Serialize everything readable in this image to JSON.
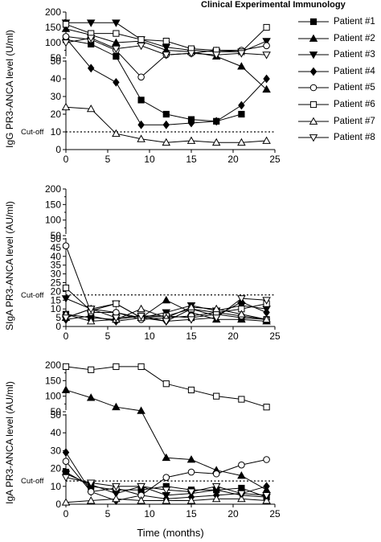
{
  "header": {
    "journal": "Clinical Experimental Immunology"
  },
  "legend": {
    "items": [
      {
        "label": "Patient #1",
        "marker": "square",
        "fill": "filled"
      },
      {
        "label": "Patient #2",
        "marker": "triangle-up",
        "fill": "filled"
      },
      {
        "label": "Patient #3",
        "marker": "triangle-down",
        "fill": "filled"
      },
      {
        "label": "Patient #4",
        "marker": "diamond",
        "fill": "filled"
      },
      {
        "label": "Patient #5",
        "marker": "circle",
        "fill": "open"
      },
      {
        "label": "Patient #6",
        "marker": "square",
        "fill": "open"
      },
      {
        "label": "Patient #7",
        "marker": "triangle-up",
        "fill": "open"
      },
      {
        "label": "Patient #8",
        "marker": "triangle-down",
        "fill": "open"
      }
    ]
  },
  "chart_data": [
    {
      "type": "line",
      "ylabel": "IgG PR3-ANCA level (U/ml)",
      "xlabel": "",
      "xlim": [
        0,
        25
      ],
      "xticks": [
        0,
        5,
        10,
        15,
        20,
        25
      ],
      "ylim": [
        0,
        200
      ],
      "y_axis_break": {
        "lower": [
          0,
          50
        ],
        "upper": [
          50,
          200
        ]
      },
      "yticks_lower": [
        0,
        10,
        20,
        30,
        40,
        50
      ],
      "yticks_upper": [
        100,
        150,
        200
      ],
      "cutoff": {
        "label": "Cut-off",
        "value": 10
      },
      "series": [
        {
          "name": "Patient #1",
          "x": [
            0,
            3,
            6,
            9,
            12,
            15,
            18,
            21
          ],
          "values": [
            110,
            95,
            55,
            28,
            20,
            17,
            16,
            20
          ]
        },
        {
          "name": "Patient #2",
          "x": [
            0,
            3,
            6,
            9,
            12,
            15,
            18,
            21,
            24
          ],
          "values": [
            145,
            125,
            100,
            105,
            75,
            70,
            55,
            47,
            34
          ]
        },
        {
          "name": "Patient #3",
          "x": [
            0,
            3,
            6,
            9,
            12,
            15,
            18,
            21,
            24
          ],
          "values": [
            165,
            165,
            165,
            110,
            85,
            75,
            70,
            70,
            105
          ]
        },
        {
          "name": "Patient #4",
          "x": [
            0,
            3,
            6,
            9,
            12,
            15,
            18,
            21,
            24
          ],
          "values": [
            115,
            46,
            38,
            14,
            14,
            15,
            16,
            25,
            40
          ]
        },
        {
          "name": "Patient #5",
          "x": [
            0,
            3,
            6,
            9,
            12,
            15,
            18,
            21,
            24
          ],
          "values": [
            120,
            110,
            75,
            41,
            60,
            65,
            75,
            75,
            90
          ]
        },
        {
          "name": "Patient #6",
          "x": [
            0,
            3,
            6,
            9,
            12,
            15,
            18,
            21,
            24
          ],
          "values": [
            160,
            130,
            130,
            110,
            105,
            80,
            75,
            70,
            150
          ]
        },
        {
          "name": "Patient #7",
          "x": [
            0,
            3,
            6,
            9,
            12,
            15,
            18,
            21,
            24
          ],
          "values": [
            24,
            23,
            9,
            6,
            4,
            5,
            4,
            4,
            5
          ]
        },
        {
          "name": "Patient #8",
          "x": [
            0,
            3,
            6,
            9,
            12,
            15,
            18,
            21,
            24
          ],
          "values": [
            100,
            115,
            80,
            90,
            60,
            65,
            60,
            65,
            60
          ]
        }
      ]
    },
    {
      "type": "line",
      "ylabel": "SIgA PR3-ANCA level (AU/ml)",
      "xlabel": "",
      "xlim": [
        0,
        25
      ],
      "xticks": [
        0,
        5,
        10,
        15,
        20,
        25
      ],
      "ylim": [
        0,
        200
      ],
      "y_axis_break": {
        "lower": [
          0,
          50
        ],
        "upper": [
          50,
          200
        ]
      },
      "yticks_lower": [
        0,
        5,
        10,
        15,
        20,
        25,
        30,
        35,
        40,
        45,
        50
      ],
      "yticks_upper": [
        100,
        150,
        200
      ],
      "cutoff": {
        "label": "Cut-off",
        "value": 18
      },
      "series": [
        {
          "name": "Patient #1",
          "x": [
            0,
            3,
            6,
            9,
            12,
            15,
            18,
            21,
            24
          ],
          "values": [
            7,
            5,
            4,
            6,
            6,
            5,
            7,
            5,
            4
          ]
        },
        {
          "name": "Patient #2",
          "x": [
            0,
            3,
            6,
            9,
            12,
            15,
            18,
            21,
            24
          ],
          "values": [
            5,
            10,
            8,
            5,
            15,
            8,
            4,
            4,
            3
          ]
        },
        {
          "name": "Patient #3",
          "x": [
            0,
            3,
            6,
            9,
            12,
            15,
            18,
            21,
            24
          ],
          "values": [
            16,
            10,
            13,
            5,
            8,
            12,
            9,
            12,
            10
          ]
        },
        {
          "name": "Patient #4",
          "x": [
            0,
            3,
            6,
            9,
            12,
            15,
            18,
            21,
            24
          ],
          "values": [
            4,
            6,
            3,
            5,
            3,
            10,
            6,
            14,
            8
          ]
        },
        {
          "name": "Patient #5",
          "x": [
            0,
            3,
            6,
            9,
            12,
            15,
            18,
            21,
            24
          ],
          "values": [
            46,
            8,
            8,
            4,
            5,
            6,
            8,
            6,
            4
          ]
        },
        {
          "name": "Patient #6",
          "x": [
            0,
            3,
            6,
            9,
            12,
            15,
            18,
            21,
            24
          ],
          "values": [
            22,
            9,
            13,
            5,
            6,
            10,
            8,
            10,
            13
          ]
        },
        {
          "name": "Patient #7",
          "x": [
            0,
            3,
            6,
            9,
            12,
            15,
            18,
            21,
            24
          ],
          "values": [
            7,
            3,
            4,
            10,
            5,
            11,
            10,
            7,
            4
          ]
        },
        {
          "name": "Patient #8",
          "x": [
            0,
            3,
            6,
            9,
            12,
            15,
            18,
            21,
            24
          ],
          "values": [
            5,
            10,
            5,
            6,
            3,
            4,
            5,
            16,
            15
          ]
        }
      ]
    },
    {
      "type": "line",
      "ylabel": "IgA PR3-ANCA level (AU/ml)",
      "xlabel": "Time (months)",
      "xlim": [
        0,
        25
      ],
      "xticks": [
        0,
        5,
        10,
        15,
        20,
        25
      ],
      "ylim": [
        0,
        200
      ],
      "y_axis_break": {
        "lower": [
          0,
          50
        ],
        "upper": [
          50,
          200
        ]
      },
      "yticks_lower": [
        0,
        10,
        20,
        30,
        40,
        50
      ],
      "yticks_upper": [
        100,
        150,
        200
      ],
      "cutoff": {
        "label": "Cut-off",
        "value": 13
      },
      "series": [
        {
          "name": "Patient #1",
          "x": [
            0,
            3,
            6,
            9,
            12,
            15,
            18,
            21,
            24
          ],
          "values": [
            18,
            10,
            8,
            8,
            10,
            8,
            8,
            9,
            4
          ]
        },
        {
          "name": "Patient #2",
          "x": [
            0,
            3,
            6,
            9,
            12,
            15,
            18,
            21,
            24
          ],
          "values": [
            120,
            95,
            65,
            53,
            26,
            25,
            19,
            16,
            8
          ]
        },
        {
          "name": "Patient #3",
          "x": [
            0,
            3,
            6,
            9,
            12,
            15,
            18,
            21,
            24
          ],
          "values": [
            17,
            11,
            6,
            10,
            5,
            6,
            8,
            5,
            4
          ]
        },
        {
          "name": "Patient #4",
          "x": [
            0,
            3,
            6,
            9,
            12,
            15,
            18,
            21,
            24
          ],
          "values": [
            29,
            7,
            2,
            5,
            3,
            4,
            5,
            6,
            10
          ]
        },
        {
          "name": "Patient #5",
          "x": [
            0,
            3,
            6,
            9,
            12,
            15,
            18,
            21,
            24
          ],
          "values": [
            24,
            7,
            9,
            5,
            15,
            18,
            17,
            22,
            25
          ]
        },
        {
          "name": "Patient #6",
          "x": [
            0,
            3,
            6,
            9,
            12,
            15,
            18,
            21,
            24
          ],
          "values": [
            195,
            185,
            195,
            195,
            140,
            120,
            100,
            90,
            65
          ]
        },
        {
          "name": "Patient #7",
          "x": [
            0,
            3,
            6,
            9,
            12,
            15,
            18,
            21,
            24
          ],
          "values": [
            1,
            2,
            3,
            2,
            2,
            2,
            3,
            3,
            2
          ]
        },
        {
          "name": "Patient #8",
          "x": [
            0,
            3,
            6,
            9,
            12,
            15,
            18,
            21,
            24
          ],
          "values": [
            15,
            12,
            10,
            10,
            8,
            7,
            10,
            6,
            5
          ]
        }
      ]
    }
  ]
}
